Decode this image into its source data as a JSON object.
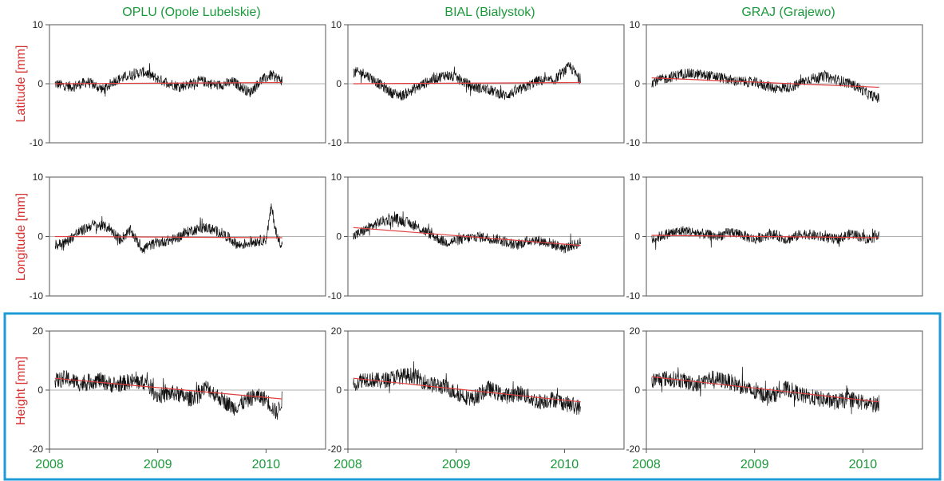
{
  "colors": {
    "title": "#1a9a3a",
    "ylabel": "#d93030",
    "xtick": "#1a9a3a",
    "series": "#111111",
    "trend": "#e04040",
    "zero_line": "#999999",
    "frame": "#555555",
    "highlight_box": "#1e9bd7"
  },
  "stations": [
    {
      "code": "OPLU",
      "title": "OPLU (Opole Lubelskie)"
    },
    {
      "code": "BIAL",
      "title": "BIAL (Bialystok)"
    },
    {
      "code": "GRAJ",
      "title": "GRAJ (Grajewo)"
    }
  ],
  "rows": [
    {
      "component": "latitude",
      "ylabel": "Latitude [mm]",
      "ylim": [
        -10,
        10
      ],
      "yticks": [
        "10",
        "0",
        "-10"
      ]
    },
    {
      "component": "longitude",
      "ylabel": "Longitude [mm]",
      "ylim": [
        -10,
        10
      ],
      "yticks": [
        "10",
        "0",
        "-10"
      ]
    },
    {
      "component": "height",
      "ylabel": "Height [mm]",
      "ylim": [
        -20,
        20
      ],
      "yticks": [
        "20",
        "0",
        "-20"
      ]
    }
  ],
  "xticks": [
    "2008",
    "2009",
    "2010"
  ],
  "chart_data": {
    "type": "line",
    "layout": "3x3 small multiples",
    "x_unit": "year",
    "xlim": [
      2008.0,
      2010.55
    ],
    "x_range_of_data": [
      2008.05,
      2010.15
    ],
    "grid": false,
    "zero_reference_line": true,
    "series_note": "daily position residuals (black) with linear trend (red)",
    "panels": [
      {
        "station": "OPLU",
        "component": "latitude",
        "trend": [
          [
            2008.05,
            0.0
          ],
          [
            2010.15,
            0.2
          ]
        ],
        "series": [
          [
            2008.05,
            0.0
          ],
          [
            2008.2,
            -0.5
          ],
          [
            2008.35,
            0.3
          ],
          [
            2008.5,
            -1.0
          ],
          [
            2008.6,
            0.5
          ],
          [
            2008.75,
            1.5
          ],
          [
            2008.87,
            2.0
          ],
          [
            2009.0,
            0.8
          ],
          [
            2009.2,
            -0.5
          ],
          [
            2009.4,
            0.5
          ],
          [
            2009.55,
            -0.3
          ],
          [
            2009.7,
            0.3
          ],
          [
            2009.85,
            -1.5
          ],
          [
            2009.95,
            0.5
          ],
          [
            2010.05,
            1.5
          ],
          [
            2010.15,
            0.5
          ]
        ]
      },
      {
        "station": "BIAL",
        "component": "latitude",
        "trend": [
          [
            2008.05,
            0.0
          ],
          [
            2010.15,
            0.2
          ]
        ],
        "series": [
          [
            2008.05,
            2.0
          ],
          [
            2008.15,
            1.8
          ],
          [
            2008.25,
            0.5
          ],
          [
            2008.4,
            -1.5
          ],
          [
            2008.5,
            -2.0
          ],
          [
            2008.6,
            -1.0
          ],
          [
            2008.75,
            0.5
          ],
          [
            2008.9,
            1.5
          ],
          [
            2009.0,
            1.0
          ],
          [
            2009.15,
            -0.5
          ],
          [
            2009.3,
            -1.0
          ],
          [
            2009.45,
            -2.0
          ],
          [
            2009.6,
            -1.0
          ],
          [
            2009.75,
            0.5
          ],
          [
            2009.9,
            0.5
          ],
          [
            2010.05,
            3.0
          ],
          [
            2010.15,
            0.5
          ]
        ]
      },
      {
        "station": "GRAJ",
        "component": "latitude",
        "trend": [
          [
            2008.05,
            1.0
          ],
          [
            2010.15,
            -0.6
          ]
        ],
        "series": [
          [
            2008.05,
            0.3
          ],
          [
            2008.2,
            1.0
          ],
          [
            2008.35,
            1.8
          ],
          [
            2008.5,
            1.5
          ],
          [
            2008.65,
            1.2
          ],
          [
            2008.8,
            0.5
          ],
          [
            2009.0,
            0.2
          ],
          [
            2009.2,
            -0.8
          ],
          [
            2009.35,
            -0.5
          ],
          [
            2009.5,
            0.8
          ],
          [
            2009.65,
            1.2
          ],
          [
            2009.8,
            0.5
          ],
          [
            2009.95,
            -0.5
          ],
          [
            2010.05,
            -1.8
          ],
          [
            2010.15,
            -2.5
          ]
        ]
      },
      {
        "station": "OPLU",
        "component": "longitude",
        "trend": [
          [
            2008.05,
            0.0
          ],
          [
            2010.15,
            -0.2
          ]
        ],
        "series": [
          [
            2008.05,
            -1.5
          ],
          [
            2008.15,
            -1.0
          ],
          [
            2008.25,
            0.5
          ],
          [
            2008.4,
            2.0
          ],
          [
            2008.55,
            1.5
          ],
          [
            2008.65,
            -0.5
          ],
          [
            2008.75,
            1.0
          ],
          [
            2008.85,
            -2.0
          ],
          [
            2009.0,
            -1.0
          ],
          [
            2009.15,
            -0.5
          ],
          [
            2009.3,
            1.0
          ],
          [
            2009.45,
            1.5
          ],
          [
            2009.6,
            0.5
          ],
          [
            2009.75,
            -1.5
          ],
          [
            2009.85,
            -1.0
          ],
          [
            2010.0,
            -0.5
          ],
          [
            2010.05,
            5.0
          ],
          [
            2010.1,
            0.0
          ],
          [
            2010.15,
            -1.5
          ]
        ]
      },
      {
        "station": "BIAL",
        "component": "longitude",
        "trend": [
          [
            2008.05,
            1.5
          ],
          [
            2010.15,
            -1.5
          ]
        ],
        "series": [
          [
            2008.05,
            0.0
          ],
          [
            2008.15,
            1.0
          ],
          [
            2008.3,
            2.5
          ],
          [
            2008.45,
            3.0
          ],
          [
            2008.6,
            2.0
          ],
          [
            2008.75,
            0.5
          ],
          [
            2008.9,
            -1.0
          ],
          [
            2009.05,
            -0.5
          ],
          [
            2009.2,
            0.0
          ],
          [
            2009.4,
            -0.5
          ],
          [
            2009.55,
            -1.5
          ],
          [
            2009.7,
            -0.5
          ],
          [
            2009.85,
            -1.0
          ],
          [
            2010.0,
            -2.0
          ],
          [
            2010.15,
            -1.0
          ]
        ]
      },
      {
        "station": "GRAJ",
        "component": "longitude",
        "trend": [
          [
            2008.05,
            0.2
          ],
          [
            2010.15,
            -0.2
          ]
        ],
        "series": [
          [
            2008.05,
            -0.5
          ],
          [
            2008.2,
            0.5
          ],
          [
            2008.35,
            1.0
          ],
          [
            2008.5,
            0.5
          ],
          [
            2008.65,
            0.0
          ],
          [
            2008.8,
            0.8
          ],
          [
            2009.0,
            -0.5
          ],
          [
            2009.15,
            0.5
          ],
          [
            2009.3,
            -0.5
          ],
          [
            2009.45,
            0.5
          ],
          [
            2009.6,
            0.0
          ],
          [
            2009.75,
            -0.5
          ],
          [
            2009.9,
            0.5
          ],
          [
            2010.05,
            -0.5
          ],
          [
            2010.15,
            0.5
          ]
        ]
      },
      {
        "station": "OPLU",
        "component": "height",
        "trend": [
          [
            2008.05,
            4.0
          ],
          [
            2010.15,
            -3.0
          ]
        ],
        "series": [
          [
            2008.05,
            3.0
          ],
          [
            2008.15,
            4.0
          ],
          [
            2008.3,
            2.0
          ],
          [
            2008.45,
            3.5
          ],
          [
            2008.6,
            1.5
          ],
          [
            2008.75,
            3.0
          ],
          [
            2008.9,
            2.5
          ],
          [
            2009.0,
            -2.0
          ],
          [
            2009.15,
            -1.0
          ],
          [
            2009.3,
            -3.0
          ],
          [
            2009.45,
            1.0
          ],
          [
            2009.55,
            -2.0
          ],
          [
            2009.7,
            -6.0
          ],
          [
            2009.8,
            -4.0
          ],
          [
            2009.9,
            -2.0
          ],
          [
            2010.0,
            -3.0
          ],
          [
            2010.1,
            -8.0
          ],
          [
            2010.15,
            -3.0
          ]
        ]
      },
      {
        "station": "BIAL",
        "component": "height",
        "trend": [
          [
            2008.05,
            4.0
          ],
          [
            2010.15,
            -4.0
          ]
        ],
        "series": [
          [
            2008.05,
            2.0
          ],
          [
            2008.15,
            4.0
          ],
          [
            2008.3,
            3.0
          ],
          [
            2008.45,
            4.5
          ],
          [
            2008.6,
            5.0
          ],
          [
            2008.75,
            2.0
          ],
          [
            2008.9,
            1.0
          ],
          [
            2009.0,
            -1.0
          ],
          [
            2009.15,
            -3.0
          ],
          [
            2009.3,
            0.5
          ],
          [
            2009.45,
            -2.0
          ],
          [
            2009.6,
            -1.0
          ],
          [
            2009.75,
            -4.0
          ],
          [
            2009.9,
            -3.0
          ],
          [
            2010.05,
            -5.0
          ],
          [
            2010.15,
            -6.0
          ]
        ]
      },
      {
        "station": "GRAJ",
        "component": "height",
        "trend": [
          [
            2008.05,
            4.5
          ],
          [
            2010.15,
            -4.0
          ]
        ],
        "series": [
          [
            2008.05,
            3.0
          ],
          [
            2008.15,
            4.0
          ],
          [
            2008.3,
            3.5
          ],
          [
            2008.45,
            2.0
          ],
          [
            2008.6,
            4.0
          ],
          [
            2008.75,
            3.0
          ],
          [
            2008.9,
            1.0
          ],
          [
            2009.0,
            -1.0
          ],
          [
            2009.15,
            -2.0
          ],
          [
            2009.3,
            0.5
          ],
          [
            2009.45,
            -2.0
          ],
          [
            2009.6,
            -3.0
          ],
          [
            2009.75,
            -4.0
          ],
          [
            2009.9,
            -3.0
          ],
          [
            2010.05,
            -5.0
          ],
          [
            2010.15,
            -4.5
          ]
        ]
      }
    ]
  }
}
